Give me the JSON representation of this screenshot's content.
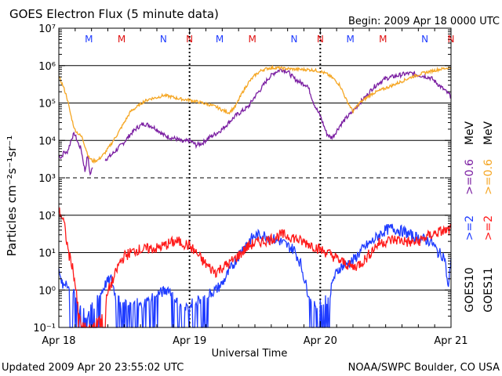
{
  "title": "GOES Electron Flux (5 minute data)",
  "begin_label": "Begin: 2009 Apr 18 0000 UTC",
  "footer_left": "Updated 2009 Apr 20 23:55:02 UTC",
  "footer_right": "NOAA/SWPC Boulder, CO USA",
  "xlabel": "Universal Time",
  "ylabel": "Particles cm⁻²s⁻¹sr⁻¹",
  "colors": {
    "goes10_high": "#7b1fa2",
    "goes11_high": "#f5a623",
    "goes10_low": "#1f3cff",
    "goes11_low": "#ff1a1a",
    "marker_M": "#e01010",
    "marker_M_blue": "#1f3cff",
    "marker_N_blue": "#1f3cff",
    "marker_N_red": "#e01010"
  },
  "legend": [
    {
      "satellite": "GOES10",
      "series": [
        {
          "label": ">=2",
          "color": "#1f3cff"
        },
        {
          "label": ">=0.6",
          "color": "#7b1fa2"
        },
        {
          "label": "MeV",
          "color": "#000000"
        }
      ]
    },
    {
      "satellite": "GOES11",
      "series": [
        {
          "label": ">=2",
          "color": "#ff1a1a"
        },
        {
          "label": ">=0.6",
          "color": "#f5a623"
        },
        {
          "label": "MeV",
          "color": "#000000"
        }
      ]
    }
  ],
  "markers": [
    {
      "label": "M",
      "day": 0.23,
      "color": "#1f3cff"
    },
    {
      "label": "M",
      "day": 0.48,
      "color": "#e01010"
    },
    {
      "label": "N",
      "day": 0.8,
      "color": "#1f3cff"
    },
    {
      "label": "N",
      "day": 1.0,
      "color": "#e01010"
    },
    {
      "label": "M",
      "day": 1.23,
      "color": "#1f3cff"
    },
    {
      "label": "M",
      "day": 1.48,
      "color": "#e01010"
    },
    {
      "label": "N",
      "day": 1.8,
      "color": "#1f3cff"
    },
    {
      "label": "N",
      "day": 2.0,
      "color": "#e01010"
    },
    {
      "label": "M",
      "day": 2.23,
      "color": "#1f3cff"
    },
    {
      "label": "M",
      "day": 2.48,
      "color": "#e01010"
    },
    {
      "label": "N",
      "day": 2.8,
      "color": "#1f3cff"
    },
    {
      "label": "N",
      "day": 3.0,
      "color": "#e01010"
    }
  ],
  "chart_data": {
    "type": "line",
    "xlabel": "Universal Time",
    "ylabel": "Particles cm⁻²s⁻¹sr⁻¹",
    "xlim": [
      0,
      3
    ],
    "x_ticks": [
      {
        "value": 0,
        "label": "Apr 18"
      },
      {
        "value": 1,
        "label": "Apr 19"
      },
      {
        "value": 2,
        "label": "Apr 20"
      },
      {
        "value": 3,
        "label": "Apr 21"
      }
    ],
    "yscale": "log",
    "ylim": [
      0.1,
      10000000
    ],
    "y_ticks": [
      {
        "value": 0.1,
        "label": "10⁻¹"
      },
      {
        "value": 1,
        "label": "10⁰"
      },
      {
        "value": 10,
        "label": "10¹"
      },
      {
        "value": 100,
        "label": "10²"
      },
      {
        "value": 1000,
        "label": "10³"
      },
      {
        "value": 10000,
        "label": "10⁴"
      },
      {
        "value": 100000,
        "label": "10⁵"
      },
      {
        "value": 1000000,
        "label": "10⁶"
      },
      {
        "value": 10000000,
        "label": "10⁷"
      }
    ],
    "gridlines": [
      1,
      10,
      100,
      10000,
      100000,
      1000000
    ],
    "dashed_gridlines": [
      1000
    ],
    "day_separators": [
      1,
      2
    ],
    "series": [
      {
        "name": "GOES10 >=0.6 MeV",
        "color": "#7b1fa2",
        "noise": 0.06,
        "points": [
          [
            0.0,
            4000
          ],
          [
            0.02,
            3500
          ],
          [
            0.04,
            5000
          ],
          [
            0.06,
            4500
          ],
          [
            0.08,
            7000
          ],
          [
            0.1,
            12000
          ],
          [
            0.12,
            15000
          ],
          [
            0.15,
            8000
          ],
          [
            0.17,
            6000
          ],
          [
            0.2,
            1500
          ],
          [
            0.22,
            4000
          ],
          [
            0.24,
            1200
          ],
          [
            0.26,
            2000
          ],
          [
            0.3,
            null
          ],
          [
            0.35,
            3000
          ],
          [
            0.4,
            4000
          ],
          [
            0.45,
            6000
          ],
          [
            0.5,
            9000
          ],
          [
            0.55,
            15000
          ],
          [
            0.6,
            22000
          ],
          [
            0.65,
            28000
          ],
          [
            0.7,
            25000
          ],
          [
            0.75,
            20000
          ],
          [
            0.8,
            14000
          ],
          [
            0.85,
            12000
          ],
          [
            0.9,
            11000
          ],
          [
            0.95,
            9000
          ],
          [
            1.0,
            10000
          ],
          [
            1.05,
            7500
          ],
          [
            1.1,
            8500
          ],
          [
            1.15,
            12000
          ],
          [
            1.2,
            15000
          ],
          [
            1.25,
            20000
          ],
          [
            1.3,
            30000
          ],
          [
            1.35,
            45000
          ],
          [
            1.4,
            60000
          ],
          [
            1.45,
            80000
          ],
          [
            1.5,
            150000
          ],
          [
            1.55,
            250000
          ],
          [
            1.6,
            450000
          ],
          [
            1.65,
            650000
          ],
          [
            1.7,
            800000
          ],
          [
            1.75,
            700000
          ],
          [
            1.8,
            450000
          ],
          [
            1.85,
            350000
          ],
          [
            1.9,
            300000
          ],
          [
            1.92,
            200000
          ],
          [
            1.95,
            100000
          ],
          [
            1.98,
            60000
          ],
          [
            2.0,
            45000
          ],
          [
            2.05,
            15000
          ],
          [
            2.08,
            12000
          ],
          [
            2.1,
            13000
          ],
          [
            2.15,
            25000
          ],
          [
            2.2,
            40000
          ],
          [
            2.25,
            60000
          ],
          [
            2.3,
            100000
          ],
          [
            2.35,
            150000
          ],
          [
            2.4,
            250000
          ],
          [
            2.45,
            350000
          ],
          [
            2.5,
            450000
          ],
          [
            2.55,
            500000
          ],
          [
            2.6,
            550000
          ],
          [
            2.65,
            600000
          ],
          [
            2.7,
            620000
          ],
          [
            2.75,
            560000
          ],
          [
            2.8,
            520000
          ],
          [
            2.85,
            460000
          ],
          [
            2.9,
            320000
          ],
          [
            2.95,
            220000
          ],
          [
            3.0,
            150000
          ]
        ]
      },
      {
        "name": "GOES11 >=0.6 MeV",
        "color": "#f5a623",
        "noise": 0.04,
        "points": [
          [
            0.0,
            500000
          ],
          [
            0.03,
            300000
          ],
          [
            0.06,
            150000
          ],
          [
            0.09,
            50000
          ],
          [
            0.12,
            20000
          ],
          [
            0.15,
            15000
          ],
          [
            0.18,
            12000
          ],
          [
            0.2,
            7000
          ],
          [
            0.23,
            3500
          ],
          [
            0.26,
            2800
          ],
          [
            0.3,
            3000
          ],
          [
            0.35,
            4500
          ],
          [
            0.4,
            8000
          ],
          [
            0.45,
            15000
          ],
          [
            0.5,
            30000
          ],
          [
            0.55,
            60000
          ],
          [
            0.6,
            80000
          ],
          [
            0.65,
            110000
          ],
          [
            0.7,
            130000
          ],
          [
            0.75,
            140000
          ],
          [
            0.8,
            160000
          ],
          [
            0.85,
            150000
          ],
          [
            0.9,
            135000
          ],
          [
            0.95,
            125000
          ],
          [
            1.0,
            120000
          ],
          [
            1.05,
            110000
          ],
          [
            1.1,
            100000
          ],
          [
            1.15,
            90000
          ],
          [
            1.2,
            80000
          ],
          [
            1.25,
            65000
          ],
          [
            1.3,
            55000
          ],
          [
            1.35,
            80000
          ],
          [
            1.4,
            180000
          ],
          [
            1.45,
            350000
          ],
          [
            1.5,
            550000
          ],
          [
            1.55,
            750000
          ],
          [
            1.6,
            850000
          ],
          [
            1.65,
            880000
          ],
          [
            1.7,
            850000
          ],
          [
            1.8,
            800000
          ],
          [
            1.9,
            780000
          ],
          [
            1.95,
            760000
          ],
          [
            2.0,
            700000
          ],
          [
            2.05,
            600000
          ],
          [
            2.1,
            450000
          ],
          [
            2.15,
            300000
          ],
          [
            2.2,
            120000
          ],
          [
            2.25,
            60000
          ],
          [
            2.3,
            100000
          ],
          [
            2.4,
            180000
          ],
          [
            2.5,
            250000
          ],
          [
            2.6,
            350000
          ],
          [
            2.7,
            500000
          ],
          [
            2.8,
            650000
          ],
          [
            2.9,
            780000
          ],
          [
            3.0,
            900000
          ]
        ]
      },
      {
        "name": "GOES10 >=2 MeV",
        "color": "#1f3cff",
        "noise": 0.15,
        "drop_below": 0.8,
        "points": [
          [
            0.0,
            3
          ],
          [
            0.03,
            1.2
          ],
          [
            0.06,
            2
          ],
          [
            0.09,
            0.5
          ],
          [
            0.12,
            0.9
          ],
          [
            0.15,
            0.4
          ],
          [
            0.18,
            0.3
          ],
          [
            0.21,
            0.2
          ],
          [
            0.24,
            0.3
          ],
          [
            0.28,
            0.4
          ],
          [
            0.32,
            0.8
          ],
          [
            0.36,
            1.5
          ],
          [
            0.4,
            2
          ],
          [
            0.44,
            0.6
          ],
          [
            0.48,
            0.4
          ],
          [
            0.52,
            0.5
          ],
          [
            0.56,
            0.6
          ],
          [
            0.6,
            0.5
          ],
          [
            0.64,
            0.4
          ],
          [
            0.68,
            0.5
          ],
          [
            0.72,
            0.7
          ],
          [
            0.76,
            0.8
          ],
          [
            0.8,
            0.9
          ],
          [
            0.84,
            1.1
          ],
          [
            0.88,
            0.6
          ],
          [
            0.92,
            0.4
          ],
          [
            0.96,
            0.3
          ],
          [
            1.0,
            0.4
          ],
          [
            1.05,
            0.5
          ],
          [
            1.1,
            0.6
          ],
          [
            1.15,
            0.8
          ],
          [
            1.2,
            1
          ],
          [
            1.25,
            1.5
          ],
          [
            1.3,
            3
          ],
          [
            1.35,
            6
          ],
          [
            1.4,
            12
          ],
          [
            1.45,
            20
          ],
          [
            1.5,
            28
          ],
          [
            1.55,
            30
          ],
          [
            1.6,
            27
          ],
          [
            1.65,
            22
          ],
          [
            1.7,
            20
          ],
          [
            1.75,
            15
          ],
          [
            1.8,
            12
          ],
          [
            1.85,
            5
          ],
          [
            1.9,
            1
          ],
          [
            1.95,
            0.5
          ],
          [
            2.0,
            0.4
          ],
          [
            2.05,
            0.6
          ],
          [
            2.08,
            0.9
          ],
          [
            2.1,
            2
          ],
          [
            2.15,
            4
          ],
          [
            2.2,
            5
          ],
          [
            2.25,
            6
          ],
          [
            2.3,
            10
          ],
          [
            2.35,
            15
          ],
          [
            2.4,
            20
          ],
          [
            2.45,
            30
          ],
          [
            2.5,
            40
          ],
          [
            2.55,
            45
          ],
          [
            2.6,
            40
          ],
          [
            2.65,
            35
          ],
          [
            2.7,
            28
          ],
          [
            2.75,
            25
          ],
          [
            2.8,
            22
          ],
          [
            2.85,
            20
          ],
          [
            2.9,
            10
          ],
          [
            2.95,
            8
          ],
          [
            2.98,
            1
          ],
          [
            3.0,
            8
          ]
        ]
      },
      {
        "name": "GOES11 >=2 MeV",
        "color": "#ff1a1a",
        "noise": 0.15,
        "drop_below": 0.5,
        "points": [
          [
            0.0,
            130
          ],
          [
            0.02,
            100
          ],
          [
            0.04,
            60
          ],
          [
            0.06,
            20
          ],
          [
            0.08,
            8
          ],
          [
            0.1,
            5
          ],
          [
            0.12,
            2
          ],
          [
            0.14,
            0.5
          ],
          [
            0.16,
            0.2
          ],
          [
            0.18,
            0.1
          ],
          [
            0.2,
            0.1
          ],
          [
            0.25,
            0.1
          ],
          [
            0.3,
            0.15
          ],
          [
            0.35,
            0.3
          ],
          [
            0.38,
            1
          ],
          [
            0.42,
            2
          ],
          [
            0.46,
            5
          ],
          [
            0.5,
            8
          ],
          [
            0.55,
            10
          ],
          [
            0.6,
            12
          ],
          [
            0.65,
            12
          ],
          [
            0.7,
            13
          ],
          [
            0.75,
            13
          ],
          [
            0.8,
            15
          ],
          [
            0.85,
            18
          ],
          [
            0.9,
            20
          ],
          [
            0.95,
            18
          ],
          [
            1.0,
            15
          ],
          [
            1.05,
            10
          ],
          [
            1.1,
            6
          ],
          [
            1.15,
            4
          ],
          [
            1.2,
            3
          ],
          [
            1.25,
            4
          ],
          [
            1.3,
            5
          ],
          [
            1.35,
            7
          ],
          [
            1.4,
            10
          ],
          [
            1.45,
            15
          ],
          [
            1.5,
            18
          ],
          [
            1.55,
            20
          ],
          [
            1.6,
            22
          ],
          [
            1.65,
            25
          ],
          [
            1.7,
            30
          ],
          [
            1.75,
            28
          ],
          [
            1.8,
            25
          ],
          [
            1.85,
            20
          ],
          [
            1.9,
            18
          ],
          [
            1.95,
            15
          ],
          [
            2.0,
            12
          ],
          [
            2.05,
            10
          ],
          [
            2.1,
            8
          ],
          [
            2.15,
            6
          ],
          [
            2.2,
            5
          ],
          [
            2.25,
            4
          ],
          [
            2.3,
            5
          ],
          [
            2.35,
            7
          ],
          [
            2.4,
            12
          ],
          [
            2.45,
            18
          ],
          [
            2.5,
            20
          ],
          [
            2.55,
            22
          ],
          [
            2.6,
            22
          ],
          [
            2.65,
            20
          ],
          [
            2.7,
            18
          ],
          [
            2.75,
            20
          ],
          [
            2.8,
            25
          ],
          [
            2.85,
            30
          ],
          [
            2.9,
            35
          ],
          [
            2.95,
            38
          ],
          [
            3.0,
            40
          ]
        ]
      }
    ]
  }
}
